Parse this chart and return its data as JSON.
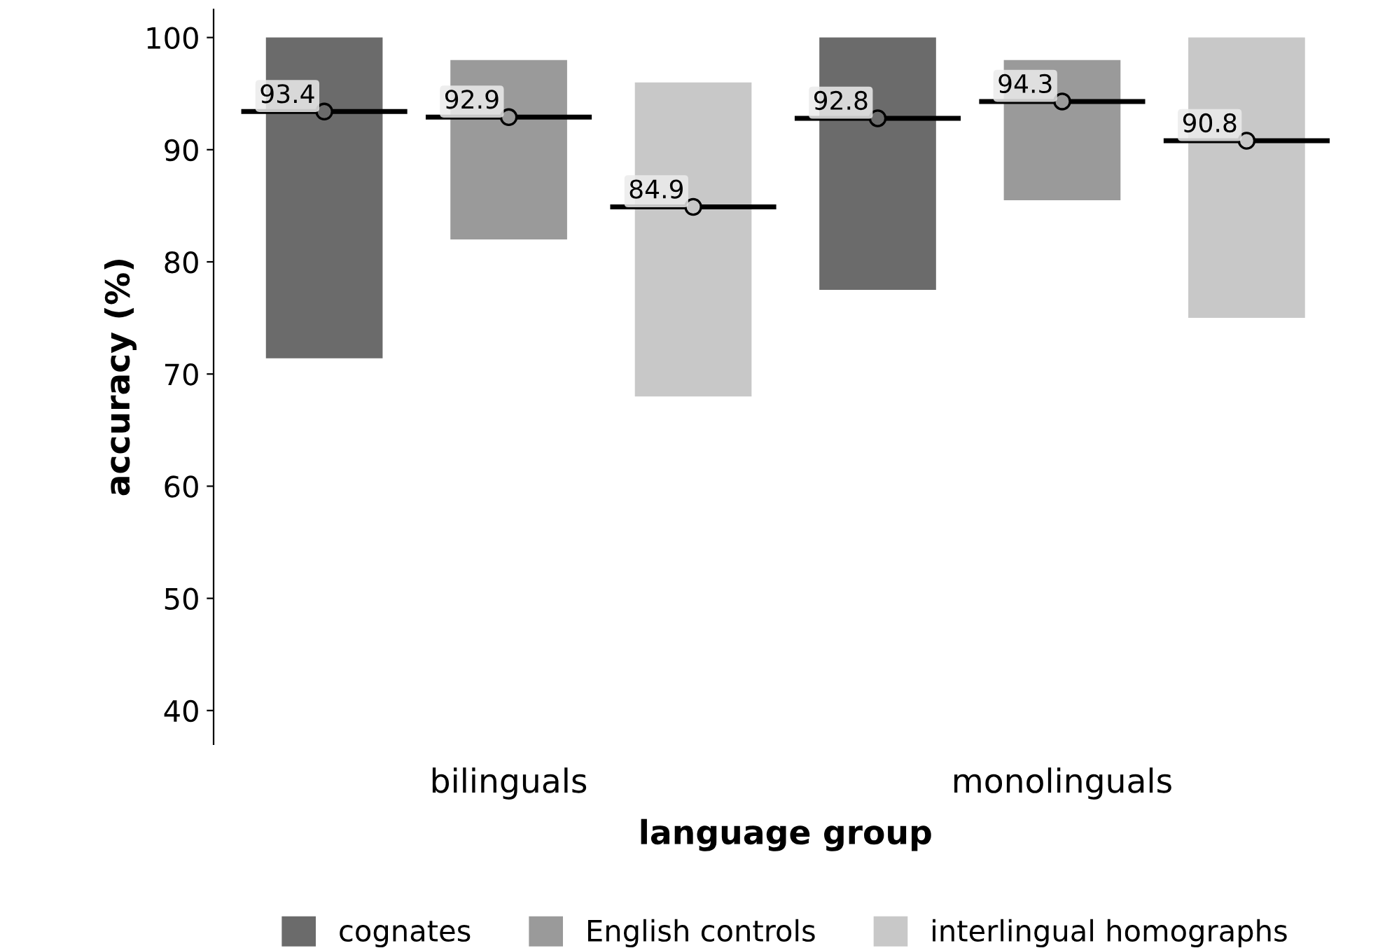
{
  "chart_data": {
    "type": "scatter",
    "xlabel": "language group",
    "ylabel": "accuracy (%)",
    "categories": [
      null,
      "bilinguals",
      null,
      null,
      "monolinguals",
      null
    ],
    "series": [
      {
        "name": "cognates",
        "color": "#6b6b6b",
        "values": [
          93.4,
          null,
          null,
          92.8,
          null,
          null
        ],
        "errors": [
          [
            71.4,
            100
          ],
          null,
          null,
          [
            77.5,
            100
          ],
          null,
          null
        ],
        "value_labels": [
          "93.4",
          null,
          null,
          "92.8",
          null,
          null
        ]
      },
      {
        "name": "English controls",
        "color": "#9a9a9a",
        "values": [
          null,
          92.9,
          null,
          null,
          94.3,
          null
        ],
        "errors": [
          null,
          [
            82,
            98
          ],
          null,
          null,
          [
            85.5,
            98
          ],
          null
        ],
        "value_labels": [
          null,
          "92.9",
          null,
          null,
          "94.3",
          null
        ]
      },
      {
        "name": "interlingual homographs",
        "color": "#c8c8c8",
        "values": [
          null,
          null,
          84.9,
          null,
          null,
          90.8
        ],
        "errors": [
          null,
          null,
          [
            68,
            96
          ],
          null,
          null,
          [
            75,
            100
          ]
        ],
        "value_labels": [
          null,
          null,
          "84.9",
          null,
          null,
          "90.8"
        ]
      }
    ],
    "ylim": [
      37,
      102.5
    ],
    "yticks": [
      40,
      50,
      60,
      70,
      80,
      90,
      100
    ],
    "grid": false,
    "legend": "bottom"
  }
}
